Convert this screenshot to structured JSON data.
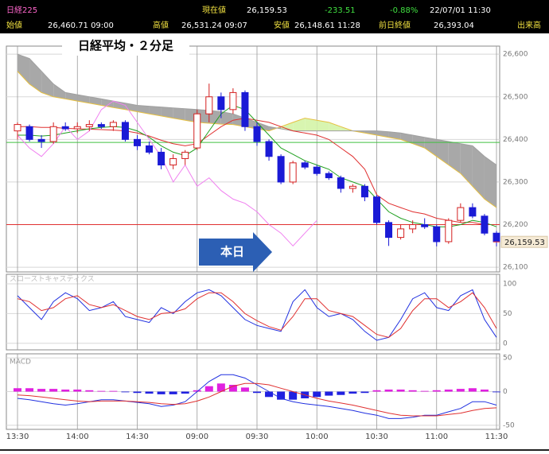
{
  "header": {
    "name": "日経225",
    "current_label": "現在値",
    "current": "26,159.53",
    "change": "-233.51",
    "change_pct": "-0.88%",
    "datetime": "22/07/01 11:30",
    "open_label": "始値",
    "open": "26,460.71 09:00",
    "high_label": "高値",
    "high": "26,531.24 09:07",
    "low_label": "安値",
    "low": "26,148.61 11:28",
    "prev_close_label": "前日終値",
    "prev_close": "26,393.04",
    "volume_label": "出来高"
  },
  "chart_data": [
    {
      "type": "candlestick",
      "title": "日経平均・２分足",
      "annotation": "本日",
      "categories": [
        "13:30",
        null,
        null,
        null,
        null,
        "14:00",
        null,
        null,
        null,
        null,
        "14:30",
        null,
        null,
        null,
        null,
        "09:00",
        null,
        null,
        null,
        null,
        "09:30",
        null,
        null,
        null,
        null,
        "10:00",
        null,
        null,
        null,
        null,
        "10:30",
        null,
        null,
        null,
        null,
        "11:00",
        null,
        null,
        null,
        null,
        "11:30"
      ],
      "open": [
        26420,
        26430,
        26400,
        26395,
        26430,
        26425,
        26430,
        26435,
        26430,
        26440,
        26400,
        26385,
        26370,
        26340,
        26355,
        26380,
        26460,
        26500,
        26470,
        26510,
        26430,
        26395,
        26360,
        26300,
        26345,
        26335,
        26320,
        26310,
        26285,
        26290,
        26265,
        26205,
        26170,
        26190,
        26200,
        26195,
        26160,
        26210,
        26240,
        26220,
        26180
      ],
      "high": [
        26440,
        26435,
        26410,
        26440,
        26440,
        26440,
        26445,
        26440,
        26445,
        26445,
        26410,
        26395,
        26380,
        26365,
        26375,
        26470,
        26531,
        26510,
        26520,
        26515,
        26440,
        26400,
        26365,
        26350,
        26350,
        26340,
        26325,
        26315,
        26295,
        26295,
        26270,
        26210,
        26200,
        26210,
        26215,
        26200,
        26215,
        26250,
        26250,
        26225,
        26185
      ],
      "low": [
        26400,
        26395,
        26380,
        26390,
        26420,
        26415,
        26420,
        26425,
        26420,
        26395,
        26375,
        26365,
        26330,
        26330,
        26340,
        26375,
        26440,
        26450,
        26460,
        26420,
        26385,
        26350,
        26295,
        26295,
        26330,
        26315,
        26305,
        26275,
        26275,
        26255,
        26200,
        26150,
        26165,
        26180,
        26190,
        26149,
        26155,
        26205,
        26215,
        26175,
        26149
      ],
      "close": [
        26435,
        26400,
        26395,
        26430,
        26425,
        26430,
        26435,
        26430,
        26440,
        26400,
        26385,
        26370,
        26340,
        26355,
        26370,
        26460,
        26500,
        26470,
        26510,
        26430,
        26395,
        26360,
        26300,
        26345,
        26335,
        26320,
        26310,
        26285,
        26290,
        26265,
        26205,
        26170,
        26190,
        26200,
        26195,
        26160,
        26210,
        26240,
        26220,
        26180,
        26160
      ],
      "up_color": "#d42020",
      "down_color": "#1a1ad6",
      "cloud": {
        "span_a": [
          26560,
          26530,
          26510,
          26500,
          26495,
          26490,
          26485,
          26480,
          26475,
          26470,
          26465,
          26460,
          26455,
          26450,
          26445,
          26440,
          26438,
          26436,
          26435,
          26430,
          26425,
          26420,
          26430,
          26440,
          26450,
          26445,
          26440,
          26430,
          26420,
          26415,
          26410,
          26405,
          26400,
          26390,
          26380,
          26360,
          26340,
          26320,
          26290,
          26260,
          26240
        ],
        "span_b": [
          26600,
          26590,
          26560,
          26530,
          26510,
          26505,
          26500,
          26495,
          26490,
          26485,
          26480,
          26478,
          26476,
          26474,
          26472,
          26470,
          26468,
          26465,
          26460,
          26450,
          26440,
          26430,
          26425,
          26420,
          26420,
          26420,
          26420,
          26420,
          26420,
          26420,
          26420,
          26418,
          26415,
          26410,
          26405,
          26400,
          26395,
          26390,
          26385,
          26360,
          26340
        ],
        "line_a_color": "#e6c040",
        "line_b_color": "#a0a0a0",
        "bear_color": "#a8a8a8",
        "bull_color": "#d8f5b0"
      },
      "lines": [
        {
          "color": "#e03030",
          "values": [
            26430,
            26430,
            26428,
            26428,
            26426,
            26425,
            26424,
            26423,
            26422,
            26420,
            26415,
            26408,
            26398,
            26390,
            26385,
            26390,
            26410,
            26430,
            26445,
            26450,
            26445,
            26440,
            26430,
            26420,
            26415,
            26410,
            26400,
            26380,
            26360,
            26330,
            26270,
            26250,
            26240,
            26230,
            26225,
            26215,
            26210,
            26205,
            26205,
            26200,
            26200
          ]
        },
        {
          "color": "#20a020",
          "values": [
            26410,
            26410,
            26408,
            26410,
            26415,
            26420,
            26425,
            26428,
            26430,
            26428,
            26420,
            26405,
            26385,
            26370,
            26362,
            26380,
            26420,
            26460,
            26480,
            26470,
            26440,
            26410,
            26380,
            26365,
            26350,
            26340,
            26330,
            26310,
            26300,
            26290,
            26260,
            26230,
            26215,
            26205,
            26200,
            26195,
            26195,
            26200,
            26210,
            26205,
            26195
          ]
        },
        {
          "color": "#f080f0",
          "values": [
            26410,
            26380,
            26360,
            26390,
            26430,
            26400,
            26420,
            26470,
            26490,
            26480,
            26440,
            26400,
            26360,
            26300,
            26340,
            26290,
            26310,
            26280,
            26260,
            26250,
            26230,
            26200,
            26180,
            26150,
            26180,
            26210,
            null,
            null,
            null,
            null,
            null,
            null,
            null,
            null,
            null,
            null,
            null,
            null,
            null,
            null,
            null
          ]
        }
      ],
      "ref_lines": [
        {
          "value": 26393.04,
          "color": "#40c040"
        },
        {
          "value": 26200,
          "color": "#e03030"
        }
      ],
      "last_price": {
        "value": 26159.53,
        "label": "26,159.53"
      },
      "ylim": [
        26089,
        26619
      ],
      "yticks": [
        {
          "value": 26100,
          "label": "26,100"
        },
        {
          "value": 26200,
          "label": "26,200"
        },
        {
          "value": 26300,
          "label": "26,300"
        },
        {
          "value": 26400,
          "label": "26,400"
        },
        {
          "value": 26500,
          "label": "26,500"
        },
        {
          "value": 26600,
          "label": "26,600"
        }
      ],
      "grid": true
    },
    {
      "type": "line",
      "title": "スローストキャスティクス",
      "series": [
        {
          "color": "#2030e0",
          "values": [
            80,
            60,
            40,
            70,
            85,
            75,
            55,
            60,
            70,
            45,
            40,
            35,
            60,
            50,
            70,
            85,
            90,
            80,
            60,
            40,
            30,
            25,
            20,
            70,
            90,
            60,
            45,
            50,
            40,
            20,
            5,
            10,
            40,
            75,
            85,
            60,
            55,
            80,
            90,
            40,
            10
          ]
        },
        {
          "color": "#e03030",
          "values": [
            75,
            70,
            55,
            60,
            75,
            80,
            65,
            60,
            65,
            55,
            45,
            40,
            50,
            52,
            58,
            75,
            85,
            85,
            70,
            50,
            38,
            28,
            22,
            45,
            75,
            75,
            55,
            50,
            45,
            30,
            15,
            10,
            25,
            55,
            75,
            75,
            60,
            70,
            85,
            60,
            25
          ]
        }
      ],
      "ylim": [
        -11,
        116
      ],
      "yticks": [
        0,
        50,
        100
      ],
      "grid": true
    },
    {
      "type": "macd",
      "title": "MACD",
      "series": [
        {
          "color": "#2030e0",
          "values": [
            -10,
            -12,
            -15,
            -18,
            -20,
            -18,
            -15,
            -12,
            -12,
            -14,
            -16,
            -18,
            -22,
            -20,
            -15,
            0,
            15,
            25,
            25,
            20,
            10,
            0,
            -10,
            -15,
            -18,
            -20,
            -22,
            -25,
            -28,
            -32,
            -35,
            -40,
            -40,
            -38,
            -35,
            -35,
            -30,
            -25,
            -15,
            -15,
            -20
          ]
        },
        {
          "color": "#e03030",
          "values": [
            -5,
            -6,
            -8,
            -10,
            -12,
            -14,
            -15,
            -14,
            -14,
            -14,
            -15,
            -16,
            -18,
            -19,
            -18,
            -14,
            -8,
            0,
            8,
            12,
            12,
            10,
            5,
            0,
            -5,
            -10,
            -14,
            -17,
            -20,
            -24,
            -28,
            -32,
            -35,
            -36,
            -36,
            -36,
            -34,
            -32,
            -28,
            -25,
            -24
          ]
        }
      ],
      "histogram": {
        "values": [
          5,
          5,
          4,
          4,
          3,
          3,
          2,
          1,
          1,
          -1,
          -2,
          -3,
          -4,
          -4,
          -3,
          2,
          8,
          12,
          10,
          6,
          -2,
          -8,
          -12,
          -12,
          -10,
          -8,
          -6,
          -5,
          -3,
          -2,
          2,
          3,
          3,
          2,
          1,
          2,
          3,
          4,
          5,
          3,
          -1
        ],
        "pos_color": "#e020e0",
        "neg_color": "#2020e0"
      },
      "ylim": [
        -56,
        56
      ],
      "yticks": [
        -50,
        0,
        50
      ],
      "grid": true
    }
  ]
}
